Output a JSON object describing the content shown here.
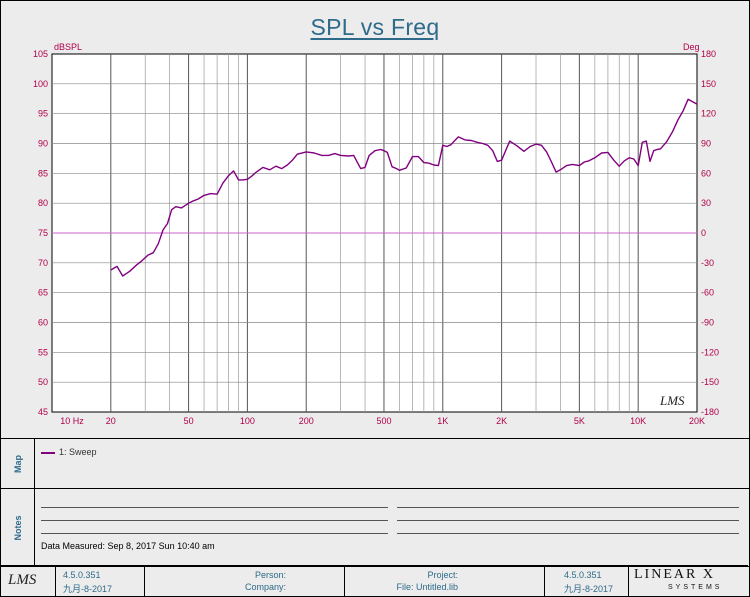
{
  "title": "SPL vs Freq",
  "chart_data": {
    "type": "line",
    "title": "SPL vs Freq",
    "x_scale": "log",
    "xlim": [
      10,
      20000
    ],
    "ylim": [
      45,
      105
    ],
    "y2lim": [
      -180,
      180
    ],
    "ylabel": "dBSPL",
    "y2label": "Deg",
    "x_ticks": [
      {
        "v": 10,
        "label": "10  Hz"
      },
      {
        "v": 20,
        "label": "20"
      },
      {
        "v": 50,
        "label": "50"
      },
      {
        "v": 100,
        "label": "100"
      },
      {
        "v": 200,
        "label": "200"
      },
      {
        "v": 500,
        "label": "500"
      },
      {
        "v": 1000,
        "label": "1K"
      },
      {
        "v": 2000,
        "label": "2K"
      },
      {
        "v": 5000,
        "label": "5K"
      },
      {
        "v": 10000,
        "label": "10K"
      },
      {
        "v": 20000,
        "label": "20K"
      }
    ],
    "y_ticks": [
      45,
      50,
      55,
      60,
      65,
      70,
      75,
      80,
      85,
      90,
      95,
      100,
      105
    ],
    "y2_ticks": [
      -180,
      -150,
      -120,
      -90,
      -60,
      -30,
      0,
      30,
      60,
      90,
      120,
      150,
      180
    ],
    "grid": true,
    "series": [
      {
        "name": "1: Sweep",
        "color": "#800080",
        "x": [
          20,
          21.5,
          23,
          25,
          27,
          29,
          31,
          33,
          35,
          37,
          39,
          41,
          43,
          46,
          50,
          53,
          56,
          60,
          65,
          70,
          75,
          80,
          85,
          90,
          95,
          100,
          105,
          110,
          120,
          130,
          140,
          150,
          160,
          170,
          180,
          200,
          220,
          240,
          260,
          280,
          300,
          330,
          350,
          380,
          400,
          420,
          450,
          480,
          500,
          520,
          550,
          580,
          600,
          650,
          700,
          750,
          800,
          850,
          900,
          950,
          1000,
          1050,
          1100,
          1200,
          1300,
          1400,
          1500,
          1600,
          1700,
          1800,
          1900,
          2000,
          2200,
          2400,
          2600,
          2800,
          3000,
          3200,
          3400,
          3600,
          3800,
          4000,
          4300,
          4600,
          5000,
          5300,
          5600,
          6000,
          6500,
          7000,
          7500,
          8000,
          8500,
          9000,
          9500,
          10000,
          10500,
          11000,
          11500,
          12000,
          12500,
          13000,
          14000,
          15000,
          16000,
          17000,
          18000,
          19000,
          20000
        ],
        "y": [
          68.8,
          69.4,
          67.8,
          68.6,
          69.6,
          70.4,
          71.3,
          71.7,
          73.2,
          75.5,
          76.6,
          78.9,
          79.4,
          79.2,
          80.0,
          80.4,
          80.7,
          81.3,
          81.6,
          81.5,
          83.4,
          84.6,
          85.4,
          83.9,
          83.9,
          84.0,
          84.5,
          85.1,
          86.0,
          85.6,
          86.2,
          85.8,
          86.4,
          87.2,
          88.2,
          88.6,
          88.4,
          88.0,
          88.0,
          88.3,
          88.0,
          87.9,
          88.0,
          85.8,
          86.0,
          88.0,
          88.8,
          89.0,
          88.8,
          88.5,
          86.1,
          85.8,
          85.5,
          85.9,
          87.8,
          87.8,
          86.8,
          86.7,
          86.4,
          86.3,
          89.7,
          89.5,
          89.8,
          91.1,
          90.6,
          90.5,
          90.2,
          90.0,
          89.7,
          88.8,
          87.0,
          87.2,
          90.4,
          89.6,
          88.7,
          89.5,
          89.9,
          89.7,
          88.6,
          86.9,
          85.2,
          85.6,
          86.3,
          86.5,
          86.3,
          86.9,
          87.1,
          87.6,
          88.4,
          88.5,
          87.2,
          86.2,
          87.1,
          87.6,
          87.4,
          86.3,
          90.2,
          90.4,
          87.0,
          88.8,
          89.0,
          89.1,
          90.3,
          92.0,
          94.0,
          95.5,
          97.4,
          97.0,
          96.6
        ]
      }
    ],
    "reference_line": {
      "axis": "y2",
      "value": 0,
      "color": "#cc66cc"
    }
  },
  "logo_text": "LMS",
  "map_panel": {
    "label": "Map",
    "legend": [
      {
        "name": "1: Sweep",
        "color": "#800080"
      }
    ]
  },
  "notes_panel": {
    "label": "Notes",
    "measured": "Data Measured: Sep 8, 2017 Sun 10:40 am"
  },
  "footer": {
    "version_left": "4.5.0.351",
    "date_left": "九月-8-2017",
    "person_label": "Person:",
    "company_label": "Company:",
    "project_label": "Project:",
    "file_label": "File: Untitled.lib",
    "version_right": "4.5.0.351",
    "date_right": "九月-8-2017",
    "brand_top": "LINEAR X",
    "brand_bottom": "SYSTEMS"
  },
  "colors": {
    "title": "#2e6b8a",
    "axis_text": "#b0004a",
    "curve": "#800080",
    "grid": "#888888"
  }
}
